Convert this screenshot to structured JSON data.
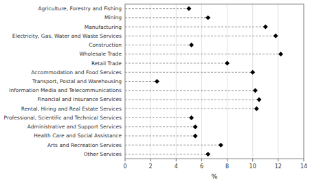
{
  "chart_data": {
    "type": "lollipop",
    "orientation": "horizontal",
    "categories": [
      "Agriculture, Forestry and Fishing",
      "Mining",
      "Manufacturing",
      "Electricity, Gas, Water and Waste Services",
      "Construction",
      "Wholesale Trade",
      "Retail Trade",
      "Accommodation and Food Services",
      "Transport, Postal and Warehousing",
      "Information Media and Telecommunications",
      "Financial and Insurance Services",
      "Rental, Hiring and Real Estate Services",
      "Professional, Scientific and Technical Services",
      "Administrative and Support Services",
      "Health Care and Social Assistance",
      "Arts and Recreation Services",
      "Other Services"
    ],
    "values": [
      5.0,
      6.5,
      11.0,
      11.8,
      5.2,
      12.2,
      8.0,
      10.0,
      2.5,
      10.2,
      10.5,
      10.3,
      5.2,
      5.5,
      5.5,
      7.5,
      6.5
    ],
    "xlabel": "%",
    "xlim": [
      0,
      14
    ],
    "xticks": [
      0,
      2,
      4,
      6,
      8,
      10,
      12,
      14
    ],
    "color": "#000000",
    "marker": "diamond",
    "line_style": "dashed",
    "grid": true
  }
}
